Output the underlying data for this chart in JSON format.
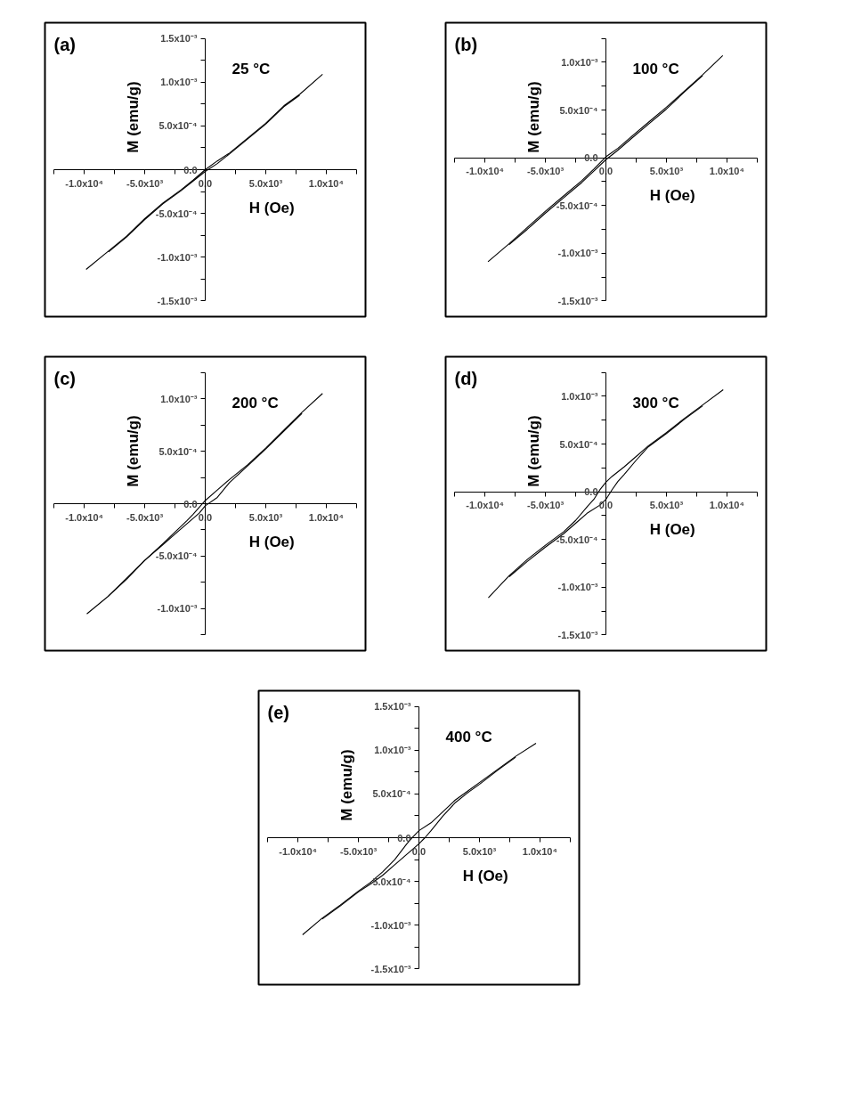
{
  "chart_data": [
    {
      "type": "line",
      "title": "(a)",
      "annotations": [
        "25 °C"
      ],
      "xlabel": "H (Oe)",
      "ylabel": "M (emu/g)",
      "xlim": [
        -12500,
        12500
      ],
      "ylim": [
        -0.0015,
        0.0015
      ],
      "xticks": [
        {
          "value": -12500,
          "label": null
        },
        {
          "value": -10000,
          "label": "-1.0x10⁴"
        },
        {
          "value": -7500,
          "label": null
        },
        {
          "value": -5000,
          "label": "-5.0x10³"
        },
        {
          "value": -2500,
          "label": null
        },
        {
          "value": 0,
          "label": "0.0"
        },
        {
          "value": 2500,
          "label": null
        },
        {
          "value": 5000,
          "label": "5.0x10³"
        },
        {
          "value": 7500,
          "label": null
        },
        {
          "value": 10000,
          "label": "1.0x10⁴"
        },
        {
          "value": 12500,
          "label": null
        }
      ],
      "yticks": [
        {
          "value": -0.0015,
          "label": "-1.5x10⁻³"
        },
        {
          "value": -0.00125,
          "label": null
        },
        {
          "value": -0.001,
          "label": "-1.0x10⁻³"
        },
        {
          "value": -0.00075,
          "label": null
        },
        {
          "value": -0.0005,
          "label": "-5.0x10⁻⁴"
        },
        {
          "value": -0.00025,
          "label": null
        },
        {
          "value": 0,
          "label": "0.0"
        },
        {
          "value": 0.00025,
          "label": null
        },
        {
          "value": 0.0005,
          "label": "5.0x10⁻⁴"
        },
        {
          "value": 0.00075,
          "label": null
        },
        {
          "value": 0.001,
          "label": "1.0x10⁻³"
        },
        {
          "value": 0.00125,
          "label": null
        },
        {
          "value": 0.0015,
          "label": "1.5x10⁻³"
        }
      ],
      "series": [
        {
          "color": "#000000",
          "x": [
            9700,
            7800,
            6500,
            5000,
            3500,
            2000,
            1000,
            0,
            -1000,
            -2000,
            -3500,
            -5000,
            -6500,
            -8000,
            -9850
          ],
          "values": [
            0.00109,
            0.00086,
            0.00073,
            0.00053,
            0.00036,
            0.00019,
            0.0001,
            0.0,
            -0.00012,
            -0.00023,
            -0.00038,
            -0.00056,
            -0.00076,
            -0.00093,
            -0.00114
          ]
        },
        {
          "color": "#000000",
          "x": [
            -8000,
            -6500,
            -5000,
            -3500,
            -2000,
            -1000,
            0,
            1000,
            2000,
            3500,
            5000,
            6500,
            7800
          ],
          "values": [
            -0.00094,
            -0.00077,
            -0.00057,
            -0.00039,
            -0.00024,
            -0.00013,
            -2e-05,
            7e-05,
            0.00018,
            0.00035,
            0.00052,
            0.00072,
            0.00085
          ]
        }
      ]
    },
    {
      "type": "line",
      "title": "(b)",
      "annotations": [
        "100 °C"
      ],
      "xlabel": "H (Oe)",
      "ylabel": "M (emu/g)",
      "xlim": [
        -12500,
        12500
      ],
      "ylim": [
        -0.0015,
        0.00125
      ],
      "xticks": [
        {
          "value": -12500,
          "label": null
        },
        {
          "value": -10000,
          "label": "-1.0x10⁴"
        },
        {
          "value": -7500,
          "label": null
        },
        {
          "value": -5000,
          "label": "-5.0x10³"
        },
        {
          "value": -2500,
          "label": null
        },
        {
          "value": 0,
          "label": "0.0"
        },
        {
          "value": 2500,
          "label": null
        },
        {
          "value": 5000,
          "label": "5.0x10³"
        },
        {
          "value": 7500,
          "label": null
        },
        {
          "value": 10000,
          "label": "1.0x10⁴"
        },
        {
          "value": 12500,
          "label": null
        }
      ],
      "yticks": [
        {
          "value": -0.0015,
          "label": "-1.5x10⁻³"
        },
        {
          "value": -0.00125,
          "label": null
        },
        {
          "value": -0.001,
          "label": "-1.0x10⁻³"
        },
        {
          "value": -0.00075,
          "label": null
        },
        {
          "value": -0.0005,
          "label": "-5.0x10⁻⁴"
        },
        {
          "value": -0.00025,
          "label": null
        },
        {
          "value": 0,
          "label": "0.0"
        },
        {
          "value": 0.00025,
          "label": null
        },
        {
          "value": 0.0005,
          "label": "5.0x10⁻⁴"
        },
        {
          "value": 0.00075,
          "label": null
        },
        {
          "value": 0.001,
          "label": "1.0x10⁻³"
        },
        {
          "value": 0.00125,
          "label": null
        }
      ],
      "series": [
        {
          "color": "#000000",
          "x": [
            9660,
            8000,
            6500,
            5000,
            3500,
            2000,
            1000,
            0,
            -1000,
            -2000,
            -3500,
            -5000,
            -6500,
            -8000,
            -9750
          ],
          "values": [
            0.00107,
            0.00087,
            0.0007,
            0.00053,
            0.00037,
            0.00021,
            0.0001,
            1e-05,
            -0.00012,
            -0.00024,
            -0.0004,
            -0.00056,
            -0.00073,
            -0.0009,
            -0.00109
          ]
        },
        {
          "color": "#000000",
          "x": [
            -8000,
            -6500,
            -5000,
            -3500,
            -2000,
            -1000,
            0,
            1000,
            2000,
            3500,
            5000,
            6500,
            8000
          ],
          "values": [
            -0.00091,
            -0.00075,
            -0.00058,
            -0.00042,
            -0.00026,
            -0.00014,
            -2e-05,
            8e-05,
            0.00019,
            0.00035,
            0.00051,
            0.00069,
            0.00086
          ]
        }
      ]
    },
    {
      "type": "line",
      "title": "(c)",
      "annotations": [
        "200 °C"
      ],
      "xlabel": "H (Oe)",
      "ylabel": "M (emu/g)",
      "xlim": [
        -12500,
        12500
      ],
      "ylim": [
        -0.00125,
        0.00125
      ],
      "xticks": [
        {
          "value": -12500,
          "label": null
        },
        {
          "value": -10000,
          "label": "-1.0x10⁴"
        },
        {
          "value": -7500,
          "label": null
        },
        {
          "value": -5000,
          "label": "-5.0x10³"
        },
        {
          "value": -2500,
          "label": null
        },
        {
          "value": 0,
          "label": "0.0"
        },
        {
          "value": 2500,
          "label": null
        },
        {
          "value": 5000,
          "label": "5.0x10³"
        },
        {
          "value": 7500,
          "label": null
        },
        {
          "value": 10000,
          "label": "1.0x10⁴"
        },
        {
          "value": 12500,
          "label": null
        }
      ],
      "yticks": [
        {
          "value": -0.00125,
          "label": null
        },
        {
          "value": -0.001,
          "label": "-1.0x10⁻³"
        },
        {
          "value": -0.00075,
          "label": null
        },
        {
          "value": -0.0005,
          "label": "-5.0x10⁻⁴"
        },
        {
          "value": -0.00025,
          "label": null
        },
        {
          "value": 0,
          "label": "0.0"
        },
        {
          "value": 0.00025,
          "label": null
        },
        {
          "value": 0.0005,
          "label": "5.0x10⁻⁴"
        },
        {
          "value": 0.00075,
          "label": null
        },
        {
          "value": 0.001,
          "label": "1.0x10⁻³"
        },
        {
          "value": 0.00125,
          "label": null
        }
      ],
      "series": [
        {
          "color": "#000000",
          "x": [
            9700,
            8000,
            6500,
            5000,
            3500,
            2000,
            1000,
            0,
            -1000,
            -1500,
            -2500,
            -3500,
            -5000,
            -6500,
            -8000,
            -9790
          ],
          "values": [
            0.00105,
            0.00087,
            0.0007,
            0.00053,
            0.00037,
            0.00023,
            0.00013,
            3e-05,
            -0.0001,
            -0.00016,
            -0.00027,
            -0.00038,
            -0.00054,
            -0.00072,
            -0.00088,
            -0.00105
          ]
        },
        {
          "color": "#000000",
          "x": [
            -8000,
            -6500,
            -5000,
            -3500,
            -2500,
            -1500,
            -500,
            0,
            1000,
            2000,
            3500,
            5000,
            6500,
            8000
          ],
          "values": [
            -0.00088,
            -0.00071,
            -0.00054,
            -0.00039,
            -0.00029,
            -0.00019,
            -9e-05,
            -2e-05,
            6e-05,
            0.0002,
            0.00036,
            0.00052,
            0.00069,
            0.00086
          ]
        }
      ]
    },
    {
      "type": "line",
      "title": "(d)",
      "annotations": [
        "300 °C"
      ],
      "xlabel": "H (Oe)",
      "ylabel": "M (emu/g)",
      "xlim": [
        -12500,
        12500
      ],
      "ylim": [
        -0.0015,
        0.00125
      ],
      "xticks": [
        {
          "value": -12500,
          "label": null
        },
        {
          "value": -10000,
          "label": "-1.0x10⁴"
        },
        {
          "value": -7500,
          "label": null
        },
        {
          "value": -5000,
          "label": "-5.0x10³"
        },
        {
          "value": -2500,
          "label": null
        },
        {
          "value": 0,
          "label": "0.0"
        },
        {
          "value": 2500,
          "label": null
        },
        {
          "value": 5000,
          "label": "5.0x10³"
        },
        {
          "value": 7500,
          "label": null
        },
        {
          "value": 10000,
          "label": "1.0x10⁴"
        },
        {
          "value": 12500,
          "label": null
        }
      ],
      "yticks": [
        {
          "value": -0.0015,
          "label": "-1.5x10⁻³"
        },
        {
          "value": -0.00125,
          "label": null
        },
        {
          "value": -0.001,
          "label": "-1.0x10⁻³"
        },
        {
          "value": -0.00075,
          "label": null
        },
        {
          "value": -0.0005,
          "label": "-5.0x10⁻⁴"
        },
        {
          "value": -0.00025,
          "label": null
        },
        {
          "value": 0,
          "label": "0.0"
        },
        {
          "value": 0.00025,
          "label": null
        },
        {
          "value": 0.0005,
          "label": "5.0x10⁻⁴"
        },
        {
          "value": 0.00075,
          "label": null
        },
        {
          "value": 0.001,
          "label": "1.0x10⁻³"
        },
        {
          "value": 0.00125,
          "label": null
        }
      ],
      "series": [
        {
          "color": "#000000",
          "x": [
            9700,
            8000,
            6500,
            5000,
            3500,
            2500,
            1500,
            500,
            0,
            -500,
            -1000,
            -1500,
            -2500,
            -3500,
            -5000,
            -6500,
            -8000,
            -9720
          ],
          "values": [
            0.00107,
            0.00091,
            0.00077,
            0.00062,
            0.00048,
            0.00037,
            0.00026,
            0.00016,
            0.0001,
            2e-05,
            -8e-05,
            -0.00015,
            -0.0003,
            -0.00042,
            -0.00056,
            -0.00071,
            -0.00088,
            -0.00111
          ]
        },
        {
          "color": "#000000",
          "x": [
            -8000,
            -6500,
            -5000,
            -3500,
            -2500,
            -1500,
            -500,
            0,
            500,
            1000,
            1500,
            2500,
            3500,
            5000,
            6500,
            8000
          ],
          "values": [
            -0.00089,
            -0.00073,
            -0.00058,
            -0.00044,
            -0.00033,
            -0.00022,
            -0.00014,
            -8e-05,
            2e-05,
            0.00011,
            0.00018,
            0.00033,
            0.00047,
            0.00061,
            0.00076,
            0.0009
          ]
        }
      ]
    },
    {
      "type": "line",
      "title": "(e)",
      "annotations": [
        "400 °C"
      ],
      "xlabel": "H (Oe)",
      "ylabel": "M (emu/g)",
      "xlim": [
        -12500,
        12500
      ],
      "ylim": [
        -0.0015,
        0.0015
      ],
      "xticks": [
        {
          "value": -12500,
          "label": null
        },
        {
          "value": -10000,
          "label": "-1.0x10⁴"
        },
        {
          "value": -7500,
          "label": null
        },
        {
          "value": -5000,
          "label": "-5.0x10³"
        },
        {
          "value": -2500,
          "label": null
        },
        {
          "value": 0,
          "label": "0.0"
        },
        {
          "value": 2500,
          "label": null
        },
        {
          "value": 5000,
          "label": "5.0x10³"
        },
        {
          "value": 7500,
          "label": null
        },
        {
          "value": 10000,
          "label": "1.0x10⁴"
        },
        {
          "value": 12500,
          "label": null
        }
      ],
      "yticks": [
        {
          "value": -0.0015,
          "label": "-1.5x10⁻³"
        },
        {
          "value": -0.00125,
          "label": null
        },
        {
          "value": -0.001,
          "label": "-1.0x10⁻³"
        },
        {
          "value": -0.00075,
          "label": null
        },
        {
          "value": -0.0005,
          "label": "-5.0x10⁻⁴"
        },
        {
          "value": -0.00025,
          "label": null
        },
        {
          "value": 0,
          "label": "0.0"
        },
        {
          "value": 0.00025,
          "label": null
        },
        {
          "value": 0.0005,
          "label": "5.0x10⁻⁴"
        },
        {
          "value": 0.00075,
          "label": null
        },
        {
          "value": 0.001,
          "label": "1.0x10⁻³"
        },
        {
          "value": 0.00125,
          "label": null
        },
        {
          "value": 0.0015,
          "label": "1.5x10⁻³"
        }
      ],
      "series": [
        {
          "color": "#000000",
          "x": [
            9680,
            8000,
            6500,
            5000,
            4000,
            3000,
            2000,
            1000,
            0,
            -500,
            -1000,
            -2000,
            -3000,
            -4000,
            -5000,
            -6500,
            -8000,
            -9620
          ],
          "values": [
            0.00108,
            0.00093,
            0.00078,
            0.00063,
            0.00053,
            0.00043,
            0.0003,
            0.00017,
            8e-05,
            1e-05,
            -7e-05,
            -0.00025,
            -0.00039,
            -0.00051,
            -0.00061,
            -0.00077,
            -0.00092,
            -0.00111
          ]
        },
        {
          "color": "#000000",
          "x": [
            -8000,
            -6500,
            -5000,
            -4000,
            -3000,
            -2000,
            -1000,
            0,
            500,
            1000,
            2000,
            3000,
            4000,
            5000,
            6500,
            8000
          ],
          "values": [
            -0.00093,
            -0.00078,
            -0.00062,
            -0.00053,
            -0.00043,
            -0.00031,
            -0.00019,
            -7e-05,
            0.0,
            8e-05,
            0.00025,
            0.0004,
            0.00051,
            0.00061,
            0.00077,
            0.00092
          ]
        }
      ]
    }
  ]
}
